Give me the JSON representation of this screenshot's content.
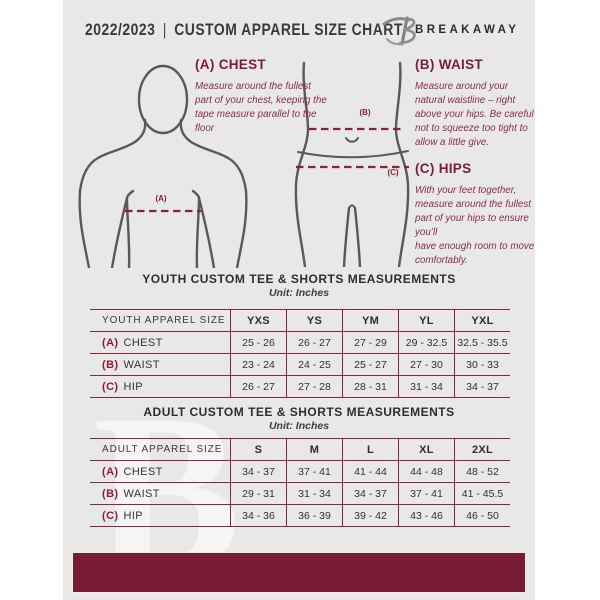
{
  "header": {
    "year": "2022/2023",
    "separator": "|",
    "title": "CUSTOM APPAREL SIZE CHART",
    "brand": "BREAKAWAY"
  },
  "icons": {
    "brand_logo": "breakaway-b-monogram",
    "watermark": "breakaway-b-watermark"
  },
  "watermark_letter": "B",
  "guide": {
    "chest": {
      "heading": "(A) CHEST",
      "body": "Measure around the fullest part of your chest, keeping the tape measure parallel to the floor"
    },
    "waist": {
      "heading": "(B) WAIST",
      "body": "Measure around your natural waistline – right above your hips. Be careful not to squeeze too tight to allow a little give."
    },
    "hips": {
      "heading": "(C) HIPS",
      "body": "With your feet together, measure around the fullest part of your hips to ensure you’ll\nhave enough room to move comfortably."
    }
  },
  "diagram": {
    "chest_label": "(A)",
    "waist_label": "(B)",
    "hips_label": "(C)"
  },
  "tables": [
    {
      "title": "YOUTH CUSTOM TEE & SHORTS MEASUREMENTS",
      "unit": "Unit: Inches",
      "size_header": "YOUTH APPAREL SIZE",
      "sizes": [
        "YXS",
        "YS",
        "YM",
        "YL",
        "YXL"
      ],
      "rows": [
        {
          "key": "(A)",
          "label": "CHEST",
          "values": [
            "25 - 26",
            "26 - 27",
            "27 - 29",
            "29 - 32.5",
            "32.5 - 35.5"
          ]
        },
        {
          "key": "(B)",
          "label": "WAIST",
          "values": [
            "23 - 24",
            "24 - 25",
            "25 - 27",
            "27 - 30",
            "30 - 33"
          ]
        },
        {
          "key": "(C)",
          "label": "HIP",
          "values": [
            "26 - 27",
            "27 - 28",
            "28 - 31",
            "31 - 34",
            "34 - 37"
          ]
        }
      ]
    },
    {
      "title": "ADULT CUSTOM TEE & SHORTS MEASUREMENTS",
      "unit": "Unit: Inches",
      "size_header": "ADULT APPAREL SIZE",
      "sizes": [
        "S",
        "M",
        "L",
        "XL",
        "2XL"
      ],
      "rows": [
        {
          "key": "(A)",
          "label": "CHEST",
          "values": [
            "34 - 37",
            "37 - 41",
            "41 - 44",
            "44 - 48",
            "48 - 52"
          ]
        },
        {
          "key": "(B)",
          "label": "WAIST",
          "values": [
            "29 - 31",
            "31 - 34",
            "34 - 37",
            "37 - 41",
            "41 - 45.5"
          ]
        },
        {
          "key": "(C)",
          "label": "HIP",
          "values": [
            "34 - 36",
            "36 - 39",
            "39 - 42",
            "43 - 46",
            "46 - 50"
          ]
        }
      ]
    }
  ],
  "colors": {
    "background": "#E8E8E6",
    "maroon_text": "#7D1B38",
    "table_line": "#8C2342",
    "footer_bar": "#761B33",
    "outline_gray": "#59585A",
    "dark_text": "#3A3A3A"
  }
}
